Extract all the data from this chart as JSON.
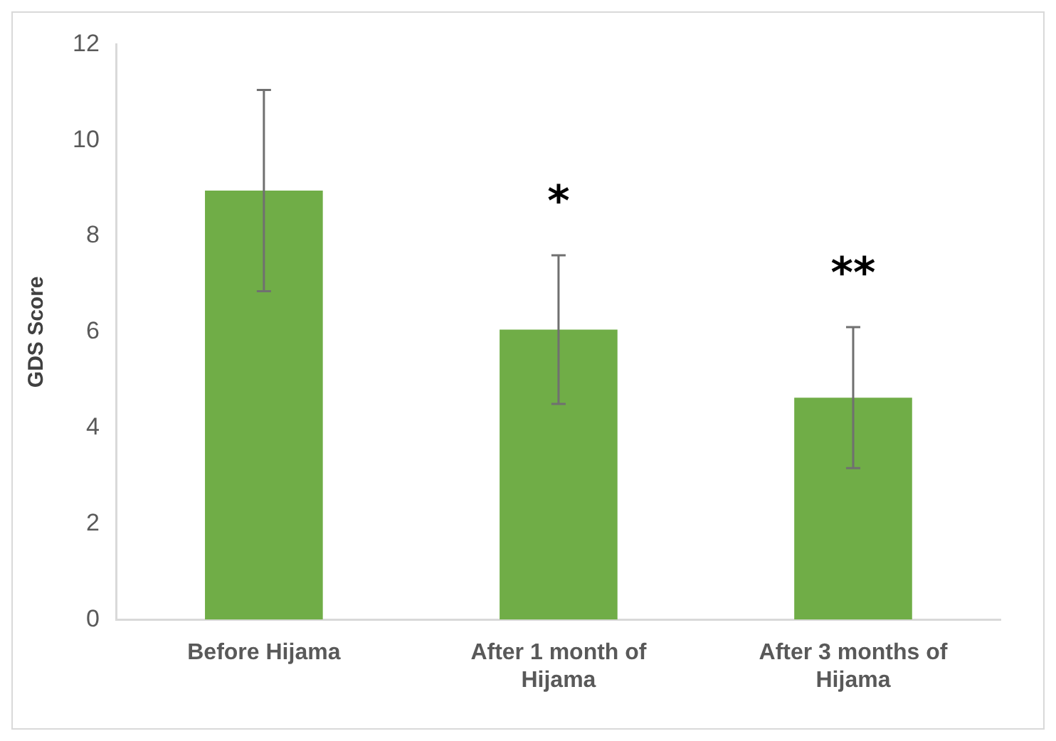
{
  "chart_data": {
    "type": "bar",
    "ylabel": "GDS Score",
    "categories": [
      "Before Hijama",
      "After 1 month of Hijama",
      "After 3 months of Hijama"
    ],
    "values": [
      8.95,
      6.05,
      4.63
    ],
    "errors": [
      2.1,
      1.55,
      1.47
    ],
    "color": "#70ad47",
    "ylim": [
      0,
      12
    ],
    "yticks": [
      0,
      2,
      4,
      6,
      8,
      10,
      12
    ],
    "grid": false,
    "legend": false,
    "annotations": [
      "*",
      "**"
    ]
  }
}
